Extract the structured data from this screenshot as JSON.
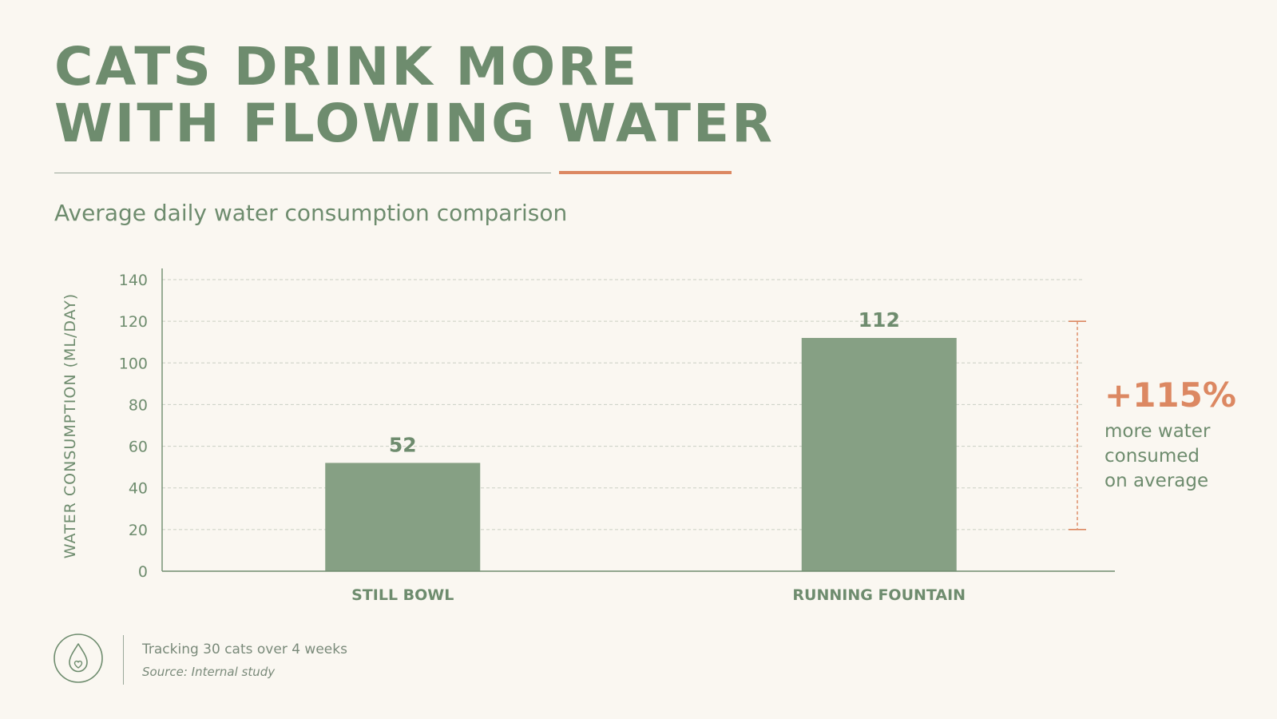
{
  "header": {
    "title_line1": "CATS DRINK MORE",
    "title_line2": "WITH FLOWING WATER",
    "subtitle": "Average daily water consumption comparison"
  },
  "chart_data": {
    "type": "bar",
    "categories": [
      "STILL BOWL",
      "RUNNING FOUNTAIN"
    ],
    "values": [
      52,
      112
    ],
    "data_labels": [
      "52",
      "112"
    ],
    "ylabel": "WATER CONSUMPTION (ML/DAY)",
    "xlabel": "",
    "ylim": [
      0,
      140
    ],
    "yticks": [
      0,
      20,
      40,
      60,
      80,
      100,
      120,
      140
    ],
    "grid": true,
    "bar_color": "#86a084"
  },
  "annotation": {
    "value": "+115%",
    "text_lines": [
      "more water",
      "consumed",
      "on average"
    ],
    "color": "#dc8862",
    "bracket_range": [
      20,
      120
    ]
  },
  "footer": {
    "icon": "water-drop-heart-icon",
    "note": "Tracking 30 cats over 4 weeks",
    "source": "Source: Internal study"
  },
  "colors": {
    "background": "#faf7f1",
    "primary": "#6e8c6e",
    "accent": "#dc8862",
    "bar": "#86a084"
  }
}
